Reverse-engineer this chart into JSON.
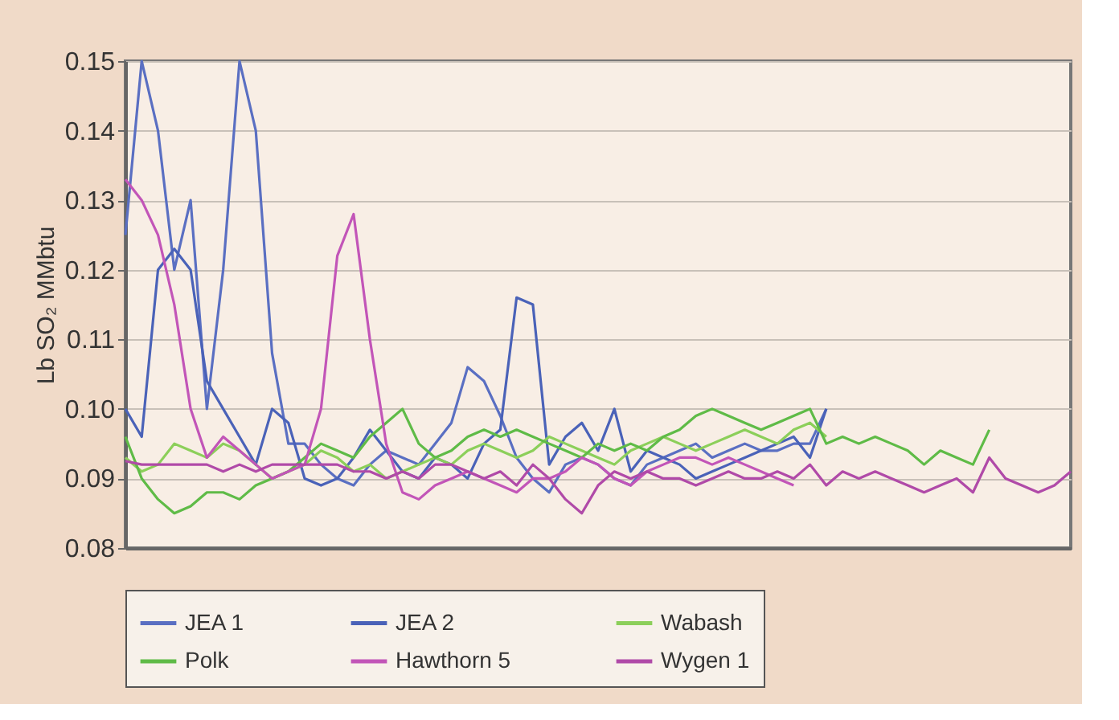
{
  "chart_data": {
    "type": "line",
    "ylabel": "Lb SO₂ MMbtu",
    "categories": [
      null,
      null,
      null,
      null,
      null,
      null,
      null,
      null,
      null,
      null,
      null,
      null,
      null,
      null,
      null,
      null,
      null,
      null,
      null,
      null,
      null,
      null,
      null,
      null,
      null,
      null,
      null,
      null,
      null,
      null,
      null,
      null,
      null,
      null,
      null,
      null,
      null,
      null,
      null,
      null,
      null,
      null,
      null,
      null,
      null,
      null,
      null,
      null,
      null,
      null,
      null,
      null,
      null,
      null,
      null,
      null,
      null,
      null,
      null
    ],
    "series": [
      {
        "name": "JEA 1",
        "color": "#5a6fc2",
        "values": [
          0.125,
          0.15,
          0.14,
          0.12,
          0.13,
          0.1,
          0.12,
          0.15,
          0.14,
          0.108,
          0.095,
          0.095,
          0.092,
          0.09,
          0.089,
          0.092,
          0.094,
          0.093,
          0.092,
          0.095,
          0.098,
          0.106,
          0.104,
          0.099,
          0.093,
          0.09,
          0.088,
          0.092,
          0.093,
          0.092,
          0.09,
          0.089,
          0.092,
          0.093,
          0.094,
          0.095,
          0.093,
          0.094,
          0.095,
          0.094,
          0.094,
          0.095,
          0.095,
          0.1,
          null,
          null,
          null,
          null,
          null,
          null,
          null,
          null,
          null,
          null,
          null,
          null,
          null,
          null,
          null
        ]
      },
      {
        "name": "JEA 2",
        "color": "#4a62b8",
        "values": [
          0.1,
          0.096,
          0.12,
          0.123,
          0.12,
          0.104,
          0.1,
          0.096,
          0.092,
          0.1,
          0.098,
          0.09,
          0.089,
          0.09,
          0.093,
          0.097,
          0.094,
          0.091,
          0.09,
          0.093,
          0.092,
          0.09,
          0.095,
          0.097,
          0.116,
          0.115,
          0.092,
          0.096,
          0.098,
          0.094,
          0.1,
          0.091,
          0.094,
          0.093,
          0.092,
          0.09,
          0.091,
          0.092,
          0.093,
          0.094,
          0.095,
          0.096,
          0.093,
          0.1,
          null,
          null,
          null,
          null,
          null,
          null,
          null,
          null,
          null,
          null,
          null,
          null,
          null,
          null,
          null
        ]
      },
      {
        "name": "Wabash",
        "color": "#8ccf5a",
        "values": [
          0.093,
          0.091,
          0.092,
          0.095,
          0.094,
          0.093,
          0.095,
          0.094,
          0.092,
          0.09,
          0.091,
          0.092,
          0.094,
          0.093,
          0.091,
          0.092,
          0.09,
          0.091,
          0.092,
          0.093,
          0.092,
          0.094,
          0.095,
          0.094,
          0.093,
          0.094,
          0.096,
          0.095,
          0.094,
          0.093,
          0.092,
          0.094,
          0.095,
          0.096,
          0.095,
          0.094,
          0.095,
          0.096,
          0.097,
          0.096,
          0.095,
          0.097,
          0.098,
          0.096,
          null,
          null,
          null,
          null,
          null,
          null,
          null,
          null,
          null,
          null,
          null,
          null,
          null,
          null,
          null
        ]
      },
      {
        "name": "Polk",
        "color": "#5fbb47",
        "values": [
          0.096,
          0.09,
          0.087,
          0.085,
          0.086,
          0.088,
          0.088,
          0.087,
          0.089,
          0.09,
          0.091,
          0.093,
          0.095,
          0.094,
          0.093,
          0.096,
          0.098,
          0.1,
          0.095,
          0.093,
          0.094,
          0.096,
          0.097,
          0.096,
          0.097,
          0.096,
          0.095,
          0.094,
          0.093,
          0.095,
          0.094,
          0.095,
          0.094,
          0.096,
          0.097,
          0.099,
          0.1,
          0.099,
          0.098,
          0.097,
          0.098,
          0.099,
          0.1,
          0.095,
          0.096,
          0.095,
          0.096,
          0.095,
          0.094,
          0.092,
          0.094,
          0.093,
          0.092,
          0.097,
          null,
          null,
          null,
          null,
          null
        ]
      },
      {
        "name": "Hawthorn 5",
        "color": "#c255b8",
        "values": [
          0.133,
          0.13,
          0.125,
          0.115,
          0.1,
          0.093,
          0.096,
          0.094,
          0.092,
          0.09,
          0.091,
          0.092,
          0.1,
          0.122,
          0.128,
          0.11,
          0.095,
          0.088,
          0.087,
          0.089,
          0.09,
          0.091,
          0.09,
          0.089,
          0.088,
          0.09,
          0.09,
          0.091,
          0.093,
          0.092,
          0.09,
          0.089,
          0.091,
          0.092,
          0.093,
          0.093,
          0.092,
          0.093,
          0.092,
          0.091,
          0.09,
          0.089,
          null,
          null,
          null,
          null,
          null,
          null,
          null,
          null,
          null,
          null,
          null,
          null,
          null,
          null,
          null,
          null,
          null
        ]
      },
      {
        "name": "Wygen 1",
        "color": "#b04aa8",
        "values": [
          0.0925,
          0.092,
          0.092,
          0.092,
          0.092,
          0.092,
          0.091,
          0.092,
          0.091,
          0.092,
          0.092,
          0.092,
          0.092,
          0.092,
          0.091,
          0.091,
          0.09,
          0.091,
          0.09,
          0.092,
          0.092,
          0.091,
          0.09,
          0.091,
          0.089,
          0.092,
          0.09,
          0.087,
          0.085,
          0.089,
          0.091,
          0.09,
          0.091,
          0.09,
          0.09,
          0.089,
          0.09,
          0.091,
          0.09,
          0.09,
          0.091,
          0.09,
          0.092,
          0.089,
          0.091,
          0.09,
          0.091,
          0.09,
          0.089,
          0.088,
          0.089,
          0.09,
          0.088,
          0.093,
          0.09,
          0.089,
          0.088,
          0.089,
          0.091
        ]
      }
    ],
    "ylim": [
      0.08,
      0.15
    ],
    "yticks": [
      0.08,
      0.09,
      {
        "value": 0.1,
        "label": "0.10"
      },
      0.11,
      0.12,
      0.13,
      0.14,
      0.15
    ],
    "tick_labels": "y",
    "grid": "y",
    "legend": "bottom",
    "marker": "none",
    "line_style": "solid"
  }
}
